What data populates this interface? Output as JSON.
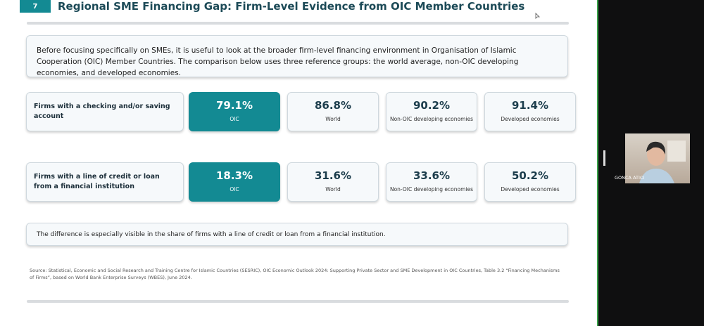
{
  "slide": {
    "number": "7",
    "title": "Regional SME Financing Gap: Firm-Level Evidence from OIC Member Countries",
    "intro": "Before focusing specifically on SMEs, it is useful to look at the broader firm-level financing environment in Organisation of Islamic Cooperation (OIC) Member Countries. The comparison below uses three reference groups: the world average, non-OIC developing economies, and developed economies.",
    "rows": [
      {
        "label": "Firms with a checking and/or saving account",
        "cards": [
          {
            "value": "79.1%",
            "label": "OIC"
          },
          {
            "value": "86.8%",
            "label": "World"
          },
          {
            "value": "90.2%",
            "label": "Non-OIC developing economies"
          },
          {
            "value": "91.4%",
            "label": "Developed economies"
          }
        ]
      },
      {
        "label": "Firms with a line of credit or loan from a financial institution",
        "cards": [
          {
            "value": "18.3%",
            "label": "OIC"
          },
          {
            "value": "31.6%",
            "label": "World"
          },
          {
            "value": "33.6%",
            "label": "Non-OIC developing economies"
          },
          {
            "value": "50.2%",
            "label": "Developed economies"
          }
        ]
      }
    ],
    "note": "The difference is especially visible in the share of firms with a line of credit or loan from a financial institution.",
    "source": "Source: Statistical, Economic and Social Research and Training Centre for Islamic Countries (SESRIC), OIC Economic Outlook 2024: Supporting Private Sector and SME Development in OIC Countries, Table 3.2 “Financing Mechanisms of Firms”, based on World Bank Enterprise Surveys (WBES), June 2024."
  },
  "participant": {
    "name": "GONCA ATICI"
  }
}
